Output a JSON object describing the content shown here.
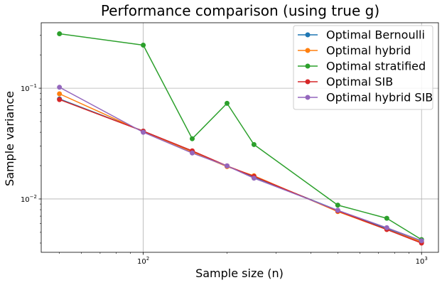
{
  "chart_data": {
    "type": "line",
    "title": "Performance comparison (using true g)",
    "xlabel": "Sample size (n)",
    "ylabel": "Sample variance",
    "xscale": "log",
    "yscale": "log",
    "xlim": [
      43,
      1150
    ],
    "ylim": [
      0.0033,
      0.39
    ],
    "grid": true,
    "legend_position": "top-right",
    "x": [
      50,
      100,
      150,
      200,
      250,
      500,
      750,
      1000
    ],
    "x_ticks": [
      {
        "value": 100,
        "label": "10²",
        "mantissa": "10",
        "exponent": "2"
      },
      {
        "value": 1000,
        "label": "10³",
        "mantissa": "10",
        "exponent": "3"
      }
    ],
    "y_ticks": [
      {
        "value": 0.01,
        "label": "10⁻²",
        "mantissa": "10",
        "exponent": "−2"
      },
      {
        "value": 0.1,
        "label": "10⁻¹",
        "mantissa": "10",
        "exponent": "−1"
      }
    ],
    "series": [
      {
        "name": "Optimal Bernoulli",
        "color": "#1f77b4",
        "values": [
          0.08,
          0.041,
          0.027,
          0.0198,
          0.0158,
          0.0079,
          0.0054,
          0.0041
        ]
      },
      {
        "name": "Optimal hybrid",
        "color": "#ff7f0e",
        "values": [
          0.089,
          0.0405,
          0.0265,
          0.0196,
          0.0162,
          0.0077,
          0.0053,
          0.0041
        ]
      },
      {
        "name": "Optimal stratified",
        "color": "#2ca02c",
        "values": [
          0.31,
          0.245,
          0.035,
          0.073,
          0.031,
          0.0088,
          0.0067,
          0.0043
        ]
      },
      {
        "name": "Optimal SIB",
        "color": "#d62728",
        "values": [
          0.079,
          0.041,
          0.0272,
          0.0199,
          0.016,
          0.0078,
          0.0053,
          0.004
        ]
      },
      {
        "name": "Optimal hybrid SIB",
        "color": "#9467bd",
        "values": [
          0.102,
          0.04,
          0.026,
          0.0199,
          0.0154,
          0.0079,
          0.0055,
          0.0042
        ]
      }
    ]
  }
}
